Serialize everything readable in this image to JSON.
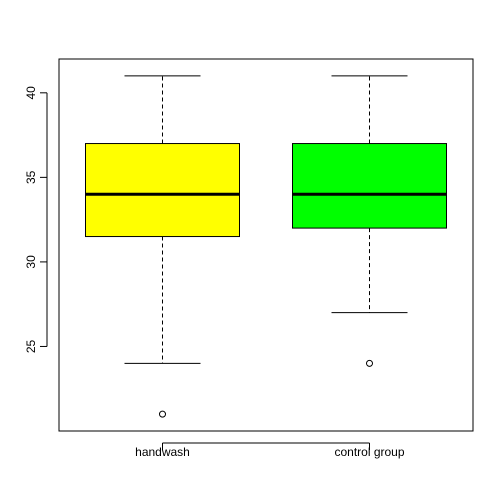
{
  "chart_data": {
    "type": "boxplot",
    "title": "",
    "xlabel": "",
    "ylabel": "",
    "ylim": [
      20.0,
      42.0
    ],
    "yticks": [
      25,
      30,
      35,
      40
    ],
    "categories": [
      "handwash",
      "control group"
    ],
    "boxes": [
      {
        "category": "handwash",
        "whisker_low": 24,
        "q1": 31.5,
        "median": 34,
        "q3": 37,
        "whisker_high": 41,
        "outliers": [
          21
        ],
        "color": "#ffff00"
      },
      {
        "category": "control group",
        "whisker_low": 27,
        "q1": 32,
        "median": 34,
        "q3": 37,
        "whisker_high": 41,
        "outliers": [
          24
        ],
        "color": "#00ff00"
      }
    ]
  }
}
